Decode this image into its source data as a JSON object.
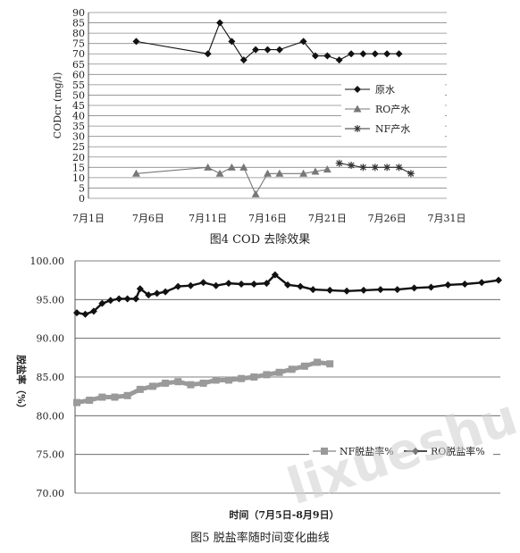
{
  "chart_data": [
    {
      "type": "line",
      "title": "",
      "caption": "图4 COD 去除效果",
      "ylabel": "CODcr (mg/l)",
      "xlabel": "",
      "ylim": [
        0,
        90
      ],
      "yticks": [
        0,
        5,
        10,
        15,
        20,
        25,
        30,
        35,
        40,
        45,
        50,
        55,
        60,
        65,
        70,
        75,
        80,
        85,
        90
      ],
      "xlim": [
        1,
        31
      ],
      "xticks": [
        {
          "value": 1,
          "label": "7月1日"
        },
        {
          "value": 6,
          "label": "7月6日"
        },
        {
          "value": 11,
          "label": "7月11日"
        },
        {
          "value": 16,
          "label": "7月16日"
        },
        {
          "value": 21,
          "label": "7月21日"
        },
        {
          "value": 26,
          "label": "7月26日"
        },
        {
          "value": 31,
          "label": "7月31日"
        }
      ],
      "grid": true,
      "legend": "right",
      "series": [
        {
          "name": "原水",
          "marker": "diamond",
          "color": "#111111",
          "x": [
            5,
            11,
            12,
            13,
            14,
            15,
            16,
            17,
            19,
            20,
            21,
            22,
            23,
            24,
            25,
            26,
            27
          ],
          "y": [
            76,
            70,
            85,
            76,
            67,
            72,
            72,
            72,
            76,
            69,
            69,
            67,
            70,
            70,
            70,
            70,
            70
          ]
        },
        {
          "name": "RO产水",
          "marker": "triangle",
          "color": "#777777",
          "x": [
            5,
            11,
            12,
            13,
            14,
            15,
            16,
            17,
            19,
            20,
            21
          ],
          "y": [
            12,
            15,
            12,
            15,
            15,
            2,
            12,
            12,
            12,
            13,
            14
          ]
        },
        {
          "name": "NF产水",
          "marker": "star",
          "color": "#333333",
          "x": [
            22,
            23,
            24,
            25,
            26,
            27,
            28
          ],
          "y": [
            17,
            16,
            15,
            15,
            15,
            15,
            12
          ]
        }
      ]
    },
    {
      "type": "line",
      "title": "",
      "caption": "图5 脱盐率随时间变化曲线",
      "ylabel": "脱盐率（%）",
      "xlabel": "时间（7月5日-8月9日）",
      "ylim": [
        70,
        100
      ],
      "yticks": [
        "70.00",
        "75.00",
        "80.00",
        "85.00",
        "90.00",
        "95.00",
        "100.00"
      ],
      "grid": true,
      "legend": "bottom-right",
      "series": [
        {
          "name": "NF脱盐率%",
          "marker": "square",
          "color": "#9a9a9a",
          "x": [
            0.0,
            0.03,
            0.06,
            0.09,
            0.12,
            0.15,
            0.18,
            0.21,
            0.24,
            0.27,
            0.3,
            0.33,
            0.36,
            0.39,
            0.42,
            0.45,
            0.48,
            0.51,
            0.54,
            0.57,
            0.6
          ],
          "y": [
            81.7,
            82.0,
            82.4,
            82.4,
            82.6,
            83.4,
            83.8,
            84.2,
            84.4,
            84.0,
            84.2,
            84.6,
            84.6,
            84.8,
            85.0,
            85.3,
            85.6,
            86.0,
            86.4,
            86.9,
            86.7
          ]
        },
        {
          "name": "RO脱盐率%",
          "marker": "diamond",
          "color": "#111111",
          "x": [
            0.0,
            0.02,
            0.04,
            0.06,
            0.08,
            0.1,
            0.12,
            0.14,
            0.15,
            0.17,
            0.19,
            0.21,
            0.24,
            0.27,
            0.3,
            0.33,
            0.36,
            0.39,
            0.42,
            0.45,
            0.47,
            0.5,
            0.53,
            0.56,
            0.6,
            0.64,
            0.68,
            0.72,
            0.76,
            0.8,
            0.84,
            0.88,
            0.92,
            0.96,
            1.0
          ],
          "y": [
            93.3,
            93.1,
            93.5,
            94.5,
            94.9,
            95.1,
            95.1,
            95.1,
            96.4,
            95.6,
            95.8,
            96.0,
            96.7,
            96.8,
            97.2,
            96.8,
            97.1,
            97.0,
            97.0,
            97.1,
            98.2,
            96.9,
            96.7,
            96.3,
            96.2,
            96.1,
            96.2,
            96.3,
            96.3,
            96.5,
            96.6,
            96.9,
            97.0,
            97.2,
            97.5
          ]
        }
      ]
    }
  ],
  "watermark": "lixueshu"
}
